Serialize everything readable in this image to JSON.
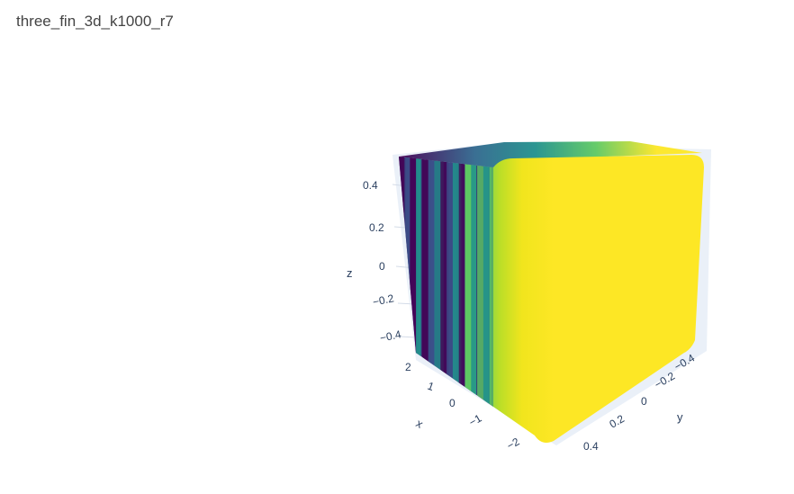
{
  "chart_data": {
    "type": "scatter3d",
    "title": "three_fin_3d_k1000_r7",
    "axes": {
      "x": {
        "title": "x",
        "ticks": [
          "2",
          "1",
          "0",
          "−1",
          "−2"
        ],
        "range": [
          -2.6,
          2.6
        ]
      },
      "y": {
        "title": "y",
        "ticks": [
          "−0.4",
          "−0.2",
          "0",
          "0.2",
          "0.4"
        ],
        "range": [
          -0.55,
          0.55
        ]
      },
      "z": {
        "title": "z",
        "ticks": [
          "0.4",
          "0.2",
          "0",
          "−0.2",
          "−0.4"
        ],
        "range": [
          -0.55,
          0.55
        ]
      }
    },
    "colorscale": "viridis",
    "colorscale_colors": [
      "#440154",
      "#3b528b",
      "#21918c",
      "#5ec962",
      "#fde725"
    ],
    "grid": true,
    "legend": false
  }
}
